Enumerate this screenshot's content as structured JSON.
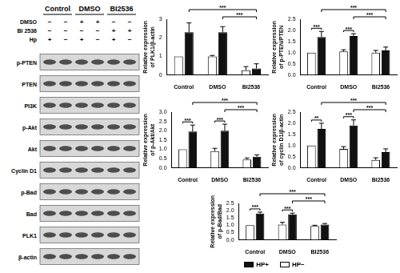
{
  "blot": {
    "groups": [
      "Control",
      "DMSO",
      "BI2536"
    ],
    "conditions": [
      {
        "label": "DMSO",
        "marks": [
          "−",
          "−",
          "+",
          "+",
          "−",
          "−"
        ]
      },
      {
        "label": "BI 2536",
        "marks": [
          "−",
          "−",
          "−",
          "−",
          "+",
          "+"
        ]
      },
      {
        "label": "Hp",
        "marks": [
          "+",
          "−",
          "+",
          "−",
          "+",
          "−"
        ]
      }
    ],
    "bands": [
      "p-PTEN",
      "PTEN",
      "PI3K",
      "p-Akt",
      "Akt",
      "Cyclin D1",
      "p-Bad",
      "Bad",
      "PLK1",
      "β-actin"
    ]
  },
  "chart_data": [
    {
      "type": "bar",
      "y_label": [
        "Relative expression",
        "of PLK1/β-actin"
      ],
      "categories": [
        "Control",
        "DMSO",
        "BI2536"
      ],
      "series": [
        {
          "name": "HP−",
          "color": "#ffffff",
          "values": [
            1.0,
            1.0,
            0.25
          ],
          "errors": [
            0,
            0.05,
            0.2
          ]
        },
        {
          "name": "HP+",
          "color": "#111111",
          "values": [
            2.3,
            2.3,
            0.35
          ],
          "errors": [
            0.5,
            0.3,
            0.25
          ]
        }
      ],
      "ylim": [
        0,
        3
      ],
      "yticks": [
        0,
        1,
        2,
        3
      ],
      "grid": false,
      "annotations": [
        {
          "from": [
            "Control",
            "HP+"
          ],
          "to": [
            "BI2536",
            "HP+"
          ],
          "text": "***"
        },
        {
          "from": [
            "DMSO",
            "HP+"
          ],
          "to": [
            "BI2536",
            "HP+"
          ],
          "text": "***"
        }
      ]
    },
    {
      "type": "bar",
      "y_label": [
        "Relative expression",
        "of p-PTEN/PTEN"
      ],
      "categories": [
        "Control",
        "DMSO",
        "BI2536"
      ],
      "series": [
        {
          "name": "HP−",
          "color": "#ffffff",
          "values": [
            1.0,
            1.05,
            1.0
          ],
          "errors": [
            0,
            0.08,
            0.1
          ]
        },
        {
          "name": "HP+",
          "color": "#111111",
          "values": [
            1.7,
            1.75,
            1.1
          ],
          "errors": [
            0.25,
            0.1,
            0.15
          ]
        }
      ],
      "ylim": [
        0,
        2.5
      ],
      "yticks": [
        {
          "value": 0,
          "label": "0.0"
        },
        0.5,
        {
          "value": 1,
          "label": "1.0"
        },
        1.5,
        {
          "value": 2,
          "label": "2.0"
        },
        2.5
      ],
      "grid": false,
      "annotations": [
        {
          "from": [
            "Control",
            "HP+"
          ],
          "to": [
            "BI2536",
            "HP+"
          ],
          "text": "***"
        },
        {
          "from": [
            "DMSO",
            "HP+"
          ],
          "to": [
            "BI2536",
            "HP+"
          ],
          "text": "***"
        },
        {
          "from": [
            "Control",
            "HP−"
          ],
          "to": [
            "Control",
            "HP+"
          ],
          "text": "***"
        },
        {
          "from": [
            "DMSO",
            "HP−"
          ],
          "to": [
            "DMSO",
            "HP+"
          ],
          "text": "***"
        }
      ]
    },
    {
      "type": "bar",
      "y_label": [
        "Relative expression",
        "of p-Akt/Akt"
      ],
      "categories": [
        "Control",
        "DMSO",
        "BI2536"
      ],
      "series": [
        {
          "name": "HP−",
          "color": "#ffffff",
          "values": [
            1.0,
            0.9,
            0.45
          ],
          "errors": [
            0,
            0.15,
            0.08
          ]
        },
        {
          "name": "HP+",
          "color": "#111111",
          "values": [
            1.95,
            2.0,
            0.6
          ],
          "errors": [
            0.35,
            0.35,
            0.1
          ]
        }
      ],
      "ylim": [
        0,
        3
      ],
      "yticks": [
        {
          "value": 0,
          "label": "0.0"
        },
        0.5,
        {
          "value": 1,
          "label": "1.0"
        },
        1.5,
        {
          "value": 2,
          "label": "2.0"
        },
        2.5,
        {
          "value": 3,
          "label": "3.0"
        }
      ],
      "grid": false,
      "annotations": [
        {
          "from": [
            "Control",
            "HP+"
          ],
          "to": [
            "BI2536",
            "HP+"
          ],
          "text": "***"
        },
        {
          "from": [
            "DMSO",
            "HP+"
          ],
          "to": [
            "BI2536",
            "HP+"
          ],
          "text": "***"
        },
        {
          "from": [
            "Control",
            "HP−"
          ],
          "to": [
            "Control",
            "HP+"
          ],
          "text": "***"
        },
        {
          "from": [
            "DMSO",
            "HP−"
          ],
          "to": [
            "DMSO",
            "HP+"
          ],
          "text": "***"
        }
      ]
    },
    {
      "type": "bar",
      "y_label": [
        "Relative expression",
        "of cyclin D1/β-actin"
      ],
      "categories": [
        "Control",
        "DMSO",
        "BI2536"
      ],
      "series": [
        {
          "name": "HP−",
          "color": "#ffffff",
          "values": [
            1.0,
            0.85,
            0.35
          ],
          "errors": [
            0,
            0.1,
            0.1
          ]
        },
        {
          "name": "HP+",
          "color": "#111111",
          "values": [
            1.75,
            1.9,
            0.7
          ],
          "errors": [
            0.25,
            0.25,
            0.15
          ]
        }
      ],
      "ylim": [
        0,
        2.5
      ],
      "yticks": [
        {
          "value": 0,
          "label": "0.0"
        },
        0.5,
        {
          "value": 1,
          "label": "1.0"
        },
        1.5,
        {
          "value": 2,
          "label": "2.0"
        },
        2.5
      ],
      "grid": false,
      "annotations": [
        {
          "from": [
            "Control",
            "HP+"
          ],
          "to": [
            "BI2536",
            "HP+"
          ],
          "text": "***"
        },
        {
          "from": [
            "DMSO",
            "HP+"
          ],
          "to": [
            "BI2536",
            "HP+"
          ],
          "text": "***"
        },
        {
          "from": [
            "Control",
            "HP−"
          ],
          "to": [
            "Control",
            "HP+"
          ],
          "text": "**"
        },
        {
          "from": [
            "DMSO",
            "HP−"
          ],
          "to": [
            "DMSO",
            "HP+"
          ],
          "text": "***"
        }
      ]
    },
    {
      "type": "bar",
      "y_label": [
        "Relative expression",
        "of p-Bad/Bad"
      ],
      "categories": [
        "Control",
        "DMSO",
        "BI2536"
      ],
      "series": [
        {
          "name": "HP−",
          "color": "#ffffff",
          "values": [
            1.0,
            1.05,
            0.95
          ],
          "errors": [
            0,
            0.15,
            0.05
          ]
        },
        {
          "name": "HP+",
          "color": "#111111",
          "values": [
            1.8,
            1.75,
            1.05
          ],
          "errors": [
            0.1,
            0.08,
            0.07
          ]
        }
      ],
      "ylim": [
        0,
        2.5
      ],
      "yticks": [
        {
          "value": 0,
          "label": "0.0"
        },
        0.5,
        {
          "value": 1,
          "label": "1.0"
        },
        1.5,
        {
          "value": 2,
          "label": "2.0"
        },
        2.5
      ],
      "grid": false,
      "legend": "bottom",
      "annotations": [
        {
          "from": [
            "Control",
            "HP+"
          ],
          "to": [
            "BI2536",
            "HP+"
          ],
          "text": "***"
        },
        {
          "from": [
            "DMSO",
            "HP+"
          ],
          "to": [
            "BI2536",
            "HP+"
          ],
          "text": "***"
        },
        {
          "from": [
            "Control",
            "HP−"
          ],
          "to": [
            "Control",
            "HP+"
          ],
          "text": "***"
        },
        {
          "from": [
            "DMSO",
            "HP−"
          ],
          "to": [
            "DMSO",
            "HP+"
          ],
          "text": "***"
        }
      ]
    }
  ]
}
